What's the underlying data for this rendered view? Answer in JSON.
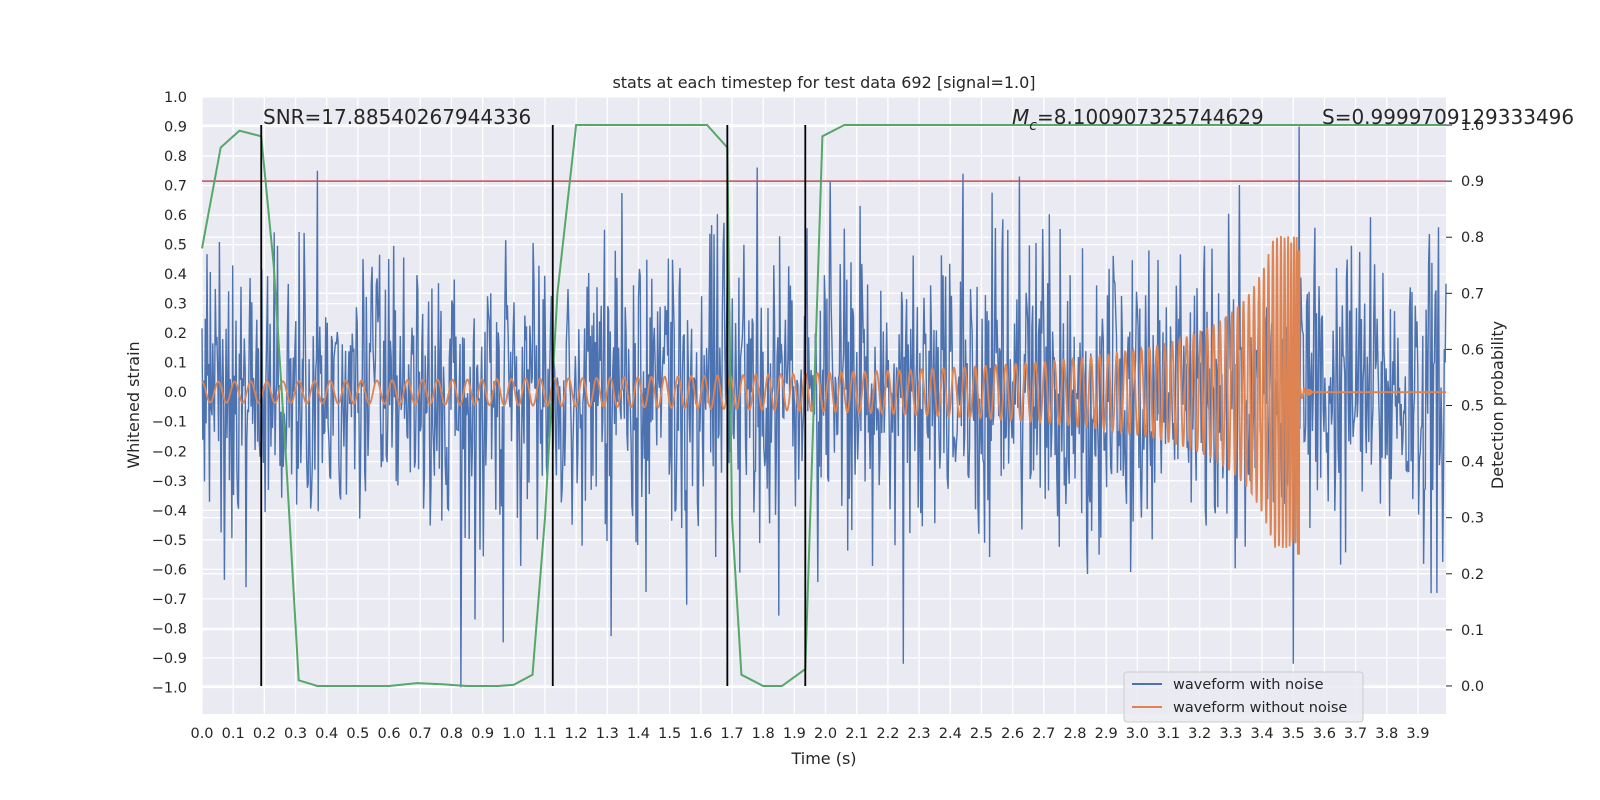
{
  "chart_data": {
    "type": "line",
    "title": "stats at each timestep for test data 692 [signal=1.0]",
    "xlabel": "Time (s)",
    "ylabel": "Whitened strain",
    "ylabel_right": "Detection probability",
    "xlim": [
      0.0,
      3.99
    ],
    "ylim": [
      -1.09,
      1.0
    ],
    "ylim_right": [
      -0.05,
      1.05
    ],
    "grid": true,
    "legend_placement": "lower right",
    "x_ticks": [
      "0.0",
      "0.1",
      "0.2",
      "0.3",
      "0.4",
      "0.5",
      "0.6",
      "0.7",
      "0.8",
      "0.9",
      "1.0",
      "1.1",
      "1.2",
      "1.3",
      "1.4",
      "1.5",
      "1.6",
      "1.7",
      "1.8",
      "1.9",
      "2.0",
      "2.1",
      "2.2",
      "2.3",
      "2.4",
      "2.5",
      "2.6",
      "2.7",
      "2.8",
      "2.9",
      "3.0",
      "3.1",
      "3.2",
      "3.3",
      "3.4",
      "3.5",
      "3.6",
      "3.7",
      "3.8",
      "3.9"
    ],
    "y_ticks_left": [
      "−1.0",
      "−0.9",
      "−0.8",
      "−0.7",
      "−0.6",
      "−0.5",
      "−0.4",
      "−0.3",
      "−0.2",
      "−0.1",
      "0.0",
      "0.1",
      "0.2",
      "0.3",
      "0.4",
      "0.5",
      "0.6",
      "0.7",
      "0.8",
      "0.9",
      "1.0"
    ],
    "y_ticks_right": [
      "0.0",
      "0.1",
      "0.2",
      "0.3",
      "0.4",
      "0.5",
      "0.6",
      "0.7",
      "0.8",
      "0.9",
      "1.0"
    ],
    "annotations": {
      "snr": "SNR=17.88540267944336",
      "mc_symbol": "M",
      "mc_sub": "c",
      "mc_value": "=8.100907325744629",
      "s": "S=0.9999709129333496"
    },
    "threshold": {
      "value": 0.9,
      "axis": "right",
      "color": "#c44e52"
    },
    "vlines": [
      0.19,
      1.125,
      1.685,
      1.935
    ],
    "series": [
      {
        "name": "waveform with noise",
        "color": "#4c72b0",
        "axis": "left",
        "noise_std": 0.26,
        "x_range": [
          0.0,
          3.99
        ],
        "spikes": [
          [
            0.37,
            0.75
          ],
          [
            0.83,
            -1.0
          ],
          [
            2.25,
            -0.92
          ],
          [
            3.5,
            -0.92
          ],
          [
            3.52,
            0.9
          ],
          [
            2.44,
            0.74
          ],
          [
            0.14,
            -0.66
          ],
          [
            3.96,
            -0.68
          ]
        ]
      },
      {
        "name": "waveform without noise",
        "color": "#dd8452",
        "axis": "left",
        "chirp": {
          "t_merger": 3.52,
          "amp_start": 0.035,
          "amp_peak": 0.48,
          "amp_min": -0.55,
          "cycles_per_second_start": 19
        }
      },
      {
        "name": "detection probability",
        "color": "#55a868",
        "axis": "right",
        "x": [
          0.0,
          0.06,
          0.12,
          0.19,
          0.23,
          0.27,
          0.31,
          0.37,
          0.5,
          0.6,
          0.69,
          0.77,
          0.85,
          0.95,
          1.0,
          1.06,
          1.1,
          1.14,
          1.2,
          1.4,
          1.5,
          1.62,
          1.685,
          1.7,
          1.73,
          1.8,
          1.86,
          1.935,
          1.99,
          2.06,
          2.5,
          3.0,
          3.99
        ],
        "values": [
          0.78,
          0.96,
          0.99,
          0.98,
          0.75,
          0.4,
          0.01,
          0.0,
          0.0,
          0.0,
          0.005,
          0.003,
          0.0,
          0.0,
          0.002,
          0.02,
          0.3,
          0.7,
          1.0,
          1.0,
          1.0,
          1.0,
          0.96,
          0.3,
          0.02,
          0.0,
          0.0,
          0.03,
          0.98,
          1.0,
          1.0,
          1.0,
          1.0
        ]
      }
    ]
  }
}
